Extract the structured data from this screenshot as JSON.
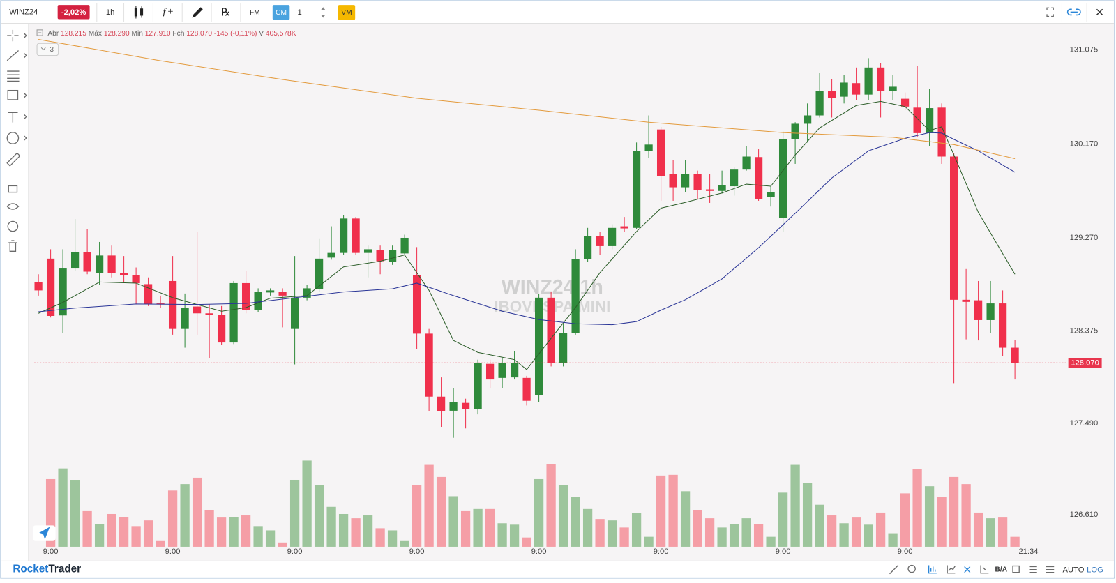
{
  "toolbar": {
    "symbol": "WINZ24",
    "change": "-2,02%",
    "interval": "1h",
    "indicators": "ƒ+",
    "templates": "℞",
    "fm": "FM",
    "cm": "CM",
    "quantity": "1",
    "vm": "VM"
  },
  "legend": {
    "open_label": "Abr",
    "open": "128.215",
    "high_label": "Máx",
    "high": "128.290",
    "low_label": "Min",
    "low": "127.910",
    "close_label": "Fch",
    "close": "128.070",
    "change": "-145 (-0,11%)",
    "volume_label": "V",
    "volume": "405,578K"
  },
  "indicators_collapsed": "3",
  "chart_data": {
    "type": "candlestick",
    "watermark_title": "WINZ24  1h",
    "watermark_subtitle": "IBOVESPA MINI",
    "categories": [
      null,
      "9:00",
      null,
      null,
      null,
      null,
      null,
      null,
      null,
      null,
      null,
      "9:00",
      null,
      null,
      null,
      null,
      null,
      null,
      null,
      null,
      null,
      "9:00",
      null,
      null,
      null,
      null,
      null,
      null,
      null,
      null,
      null,
      "9:00",
      null,
      null,
      null,
      null,
      null,
      null,
      null,
      null,
      null,
      "9:00",
      null,
      null,
      null,
      null,
      null,
      null,
      null,
      null,
      null,
      "9:00",
      null,
      null,
      null,
      null,
      null,
      null,
      null,
      null,
      null,
      "9:00",
      null,
      null,
      null,
      null,
      null,
      null,
      null,
      null,
      null,
      "9:00",
      null,
      null,
      null,
      null,
      null,
      null,
      null,
      null,
      null
    ],
    "open": [
      128.845,
      129.07,
      128.525,
      128.975,
      129.135,
      128.935,
      129.1,
      128.935,
      128.915,
      128.825,
      128.64,
      128.855,
      128.395,
      128.61,
      128.545,
      128.53,
      128.265,
      128.835,
      128.575,
      128.745,
      128.75,
      128.395,
      128.695,
      128.78,
      129.08,
      129.125,
      129.455,
      129.125,
      129.15,
      129.04,
      129.12,
      128.91,
      128.35,
      127.745,
      127.61,
      127.685,
      127.625,
      128.06,
      127.925,
      127.93,
      127.925,
      127.76,
      128.695,
      128.07,
      128.355,
      129.065,
      129.285,
      129.19,
      129.38,
      129.365,
      130.105,
      130.31,
      129.88,
      129.755,
      129.885,
      129.735,
      129.72,
      129.765,
      129.925,
      130.045,
      129.66,
      129.46,
      130.215,
      130.365,
      130.445,
      130.68,
      130.625,
      130.755,
      130.645,
      130.905,
      130.68,
      130.605,
      130.52,
      130.275,
      130.52,
      130.05,
      128.675,
      128.67,
      128.48,
      128.64,
      128.215
    ],
    "high": [
      128.92,
      129.16,
      129.16,
      129.45,
      129.355,
      129.23,
      129.195,
      129.095,
      128.985,
      128.89,
      128.715,
      129.095,
      128.735,
      129.33,
      128.63,
      128.615,
      128.855,
      128.955,
      128.785,
      128.785,
      128.785,
      129.095,
      128.82,
      129.265,
      129.38,
      129.485,
      129.47,
      129.195,
      129.195,
      129.195,
      129.3,
      129.18,
      128.395,
      127.93,
      127.83,
      127.725,
      128.1,
      128.1,
      128.12,
      128.185,
      127.945,
      128.73,
      128.75,
      128.445,
      129.16,
      129.365,
      129.33,
      129.4,
      129.47,
      130.185,
      130.445,
      130.335,
      130.015,
      130.015,
      129.915,
      129.88,
      129.915,
      129.945,
      130.15,
      130.12,
      129.765,
      130.29,
      130.38,
      130.56,
      130.855,
      130.79,
      130.835,
      130.905,
      130.995,
      130.95,
      130.835,
      130.665,
      130.92,
      130.7,
      130.56,
      130.085,
      128.97,
      128.855,
      128.855,
      128.765,
      128.29
    ],
    "low": [
      128.715,
      128.505,
      128.355,
      128.955,
      128.92,
      128.82,
      128.89,
      128.835,
      128.63,
      128.615,
      128.6,
      128.34,
      128.215,
      128.34,
      128.115,
      128.24,
      128.25,
      128.545,
      128.56,
      128.715,
      128.41,
      128.055,
      128.67,
      128.75,
      129.06,
      129.105,
      129.105,
      128.89,
      128.92,
      129.01,
      129.105,
      128.205,
      127.605,
      127.455,
      127.35,
      127.44,
      127.575,
      127.83,
      127.83,
      127.91,
      127.66,
      127.69,
      128.035,
      128.035,
      128.34,
      129.04,
      129.105,
      129.16,
      129.33,
      129.355,
      130.035,
      129.625,
      129.625,
      129.71,
      129.64,
      129.605,
      129.695,
      129.675,
      129.915,
      129.625,
      129.57,
      129.33,
      129.98,
      130.185,
      130.425,
      130.425,
      130.56,
      130.595,
      130.595,
      130.425,
      130.595,
      130.495,
      130.24,
      130.15,
      129.98,
      127.875,
      128.295,
      128.285,
      128.355,
      128.135,
      127.91
    ],
    "close": [
      128.765,
      128.52,
      128.975,
      129.135,
      128.945,
      129.1,
      128.93,
      128.915,
      128.835,
      128.635,
      128.63,
      128.395,
      128.6,
      128.545,
      128.53,
      128.265,
      128.835,
      128.58,
      128.75,
      128.765,
      128.715,
      128.695,
      128.785,
      129.07,
      129.125,
      129.455,
      129.125,
      129.16,
      129.045,
      129.15,
      129.27,
      128.35,
      127.745,
      127.605,
      127.69,
      127.625,
      128.07,
      127.91,
      128.07,
      128.07,
      127.705,
      128.695,
      128.07,
      128.355,
      129.065,
      129.285,
      129.19,
      129.365,
      129.36,
      130.105,
      130.165,
      129.86,
      129.755,
      129.885,
      129.73,
      129.72,
      129.775,
      129.925,
      130.05,
      129.645,
      129.71,
      130.215,
      130.365,
      130.445,
      130.68,
      130.615,
      130.76,
      130.645,
      130.905,
      130.68,
      130.72,
      130.53,
      130.275,
      130.515,
      130.05,
      128.675,
      128.655,
      128.48,
      128.64,
      128.215,
      128.07
    ],
    "volume": [
      null,
      2755000,
      3190000,
      2697000,
      1450000,
      928000,
      1334000,
      1218000,
      841000,
      1073000,
      232000,
      2291000,
      2552000,
      2813000,
      1479000,
      1189000,
      1218000,
      1276000,
      841000,
      667000,
      174000,
      2726000,
      3509000,
      2523000,
      1624000,
      1334000,
      1160000,
      1276000,
      754000,
      667000,
      232000,
      2523000,
      3335000,
      2842000,
      2059000,
      1450000,
      1537000,
      1537000,
      957000,
      899000,
      377000,
      2755000,
      3364000,
      2523000,
      2030000,
      1537000,
      1131000,
      1073000,
      783000,
      1363000,
      406000,
      2900000,
      2929000,
      2262000,
      1479000,
      1160000,
      783000,
      928000,
      1160000,
      928000,
      406000,
      2204000,
      3335000,
      2610000,
      1711000,
      1276000,
      957000,
      1189000,
      899000,
      1392000,
      522000,
      2175000,
      3161000,
      2465000,
      2030000,
      2842000,
      2552000,
      1392000,
      1160000,
      1189000,
      405578
    ],
    "volume_lim": [
      0,
      21257000
    ],
    "up_color": "#2f8a3b",
    "down_color": "#f0304c",
    "volume_up_color": "#9dc59c",
    "volume_down_color": "#f59ea6",
    "moving_averages": [
      {
        "color": "#2d5e2a",
        "x": [
          0,
          2,
          5,
          8,
          11,
          13,
          15,
          17,
          19,
          22,
          25,
          28,
          30,
          32,
          34,
          36,
          39,
          40,
          42,
          44,
          46,
          49,
          51,
          53,
          56,
          58,
          60,
          62,
          64,
          67,
          69,
          71,
          73,
          74,
          75,
          77,
          80
        ],
        "values": [
          128.545,
          128.65,
          128.845,
          128.835,
          128.695,
          128.63,
          128.565,
          128.6,
          128.69,
          128.715,
          128.99,
          129.045,
          129.105,
          128.765,
          128.285,
          128.17,
          128.1,
          128.005,
          128.305,
          128.6,
          128.935,
          129.33,
          129.555,
          129.61,
          129.7,
          129.785,
          129.765,
          130.065,
          130.325,
          130.54,
          130.58,
          130.53,
          130.3,
          130.335,
          130.065,
          129.515,
          128.92
        ]
      },
      {
        "color": "#2a3597",
        "x": [
          0,
          3,
          8,
          13,
          17,
          21,
          25,
          29,
          31,
          34,
          38,
          41,
          44,
          47,
          49,
          51,
          53,
          56,
          59,
          62,
          65,
          68,
          71,
          73,
          74,
          75,
          77,
          80
        ],
        "values": [
          128.56,
          128.595,
          128.635,
          128.63,
          128.64,
          128.695,
          128.75,
          128.78,
          128.835,
          128.715,
          128.565,
          128.485,
          128.445,
          128.435,
          128.465,
          128.575,
          128.675,
          128.875,
          129.175,
          129.505,
          129.845,
          130.105,
          130.225,
          130.28,
          130.275,
          130.215,
          130.105,
          129.9
        ]
      },
      {
        "color": "#e39a3c",
        "x": [
          0,
          10,
          20,
          31,
          41,
          50,
          61,
          70,
          75,
          80
        ],
        "values": [
          131.175,
          130.97,
          130.79,
          130.61,
          130.495,
          130.38,
          130.28,
          130.235,
          130.165,
          130.03
        ]
      }
    ],
    "ylim": [
      126.304,
      131.314
    ],
    "yticks": [
      131.075,
      {
        "value": 130.17,
        "label": "130.170"
      },
      {
        "value": 129.27,
        "label": "129.270"
      },
      128.375,
      {
        "value": 127.49,
        "label": "127.490"
      },
      {
        "value": 126.61,
        "label": "126.610"
      }
    ],
    "last_price": {
      "value": 128.07,
      "label": "128.070"
    },
    "last_price_color": "#e8354d",
    "time_label": "21:34"
  },
  "footer": {
    "brand_1": "Rocket",
    "brand_2": "Trader",
    "bid_ask": "B/A",
    "auto": "AUTO",
    "log": "LOG"
  }
}
